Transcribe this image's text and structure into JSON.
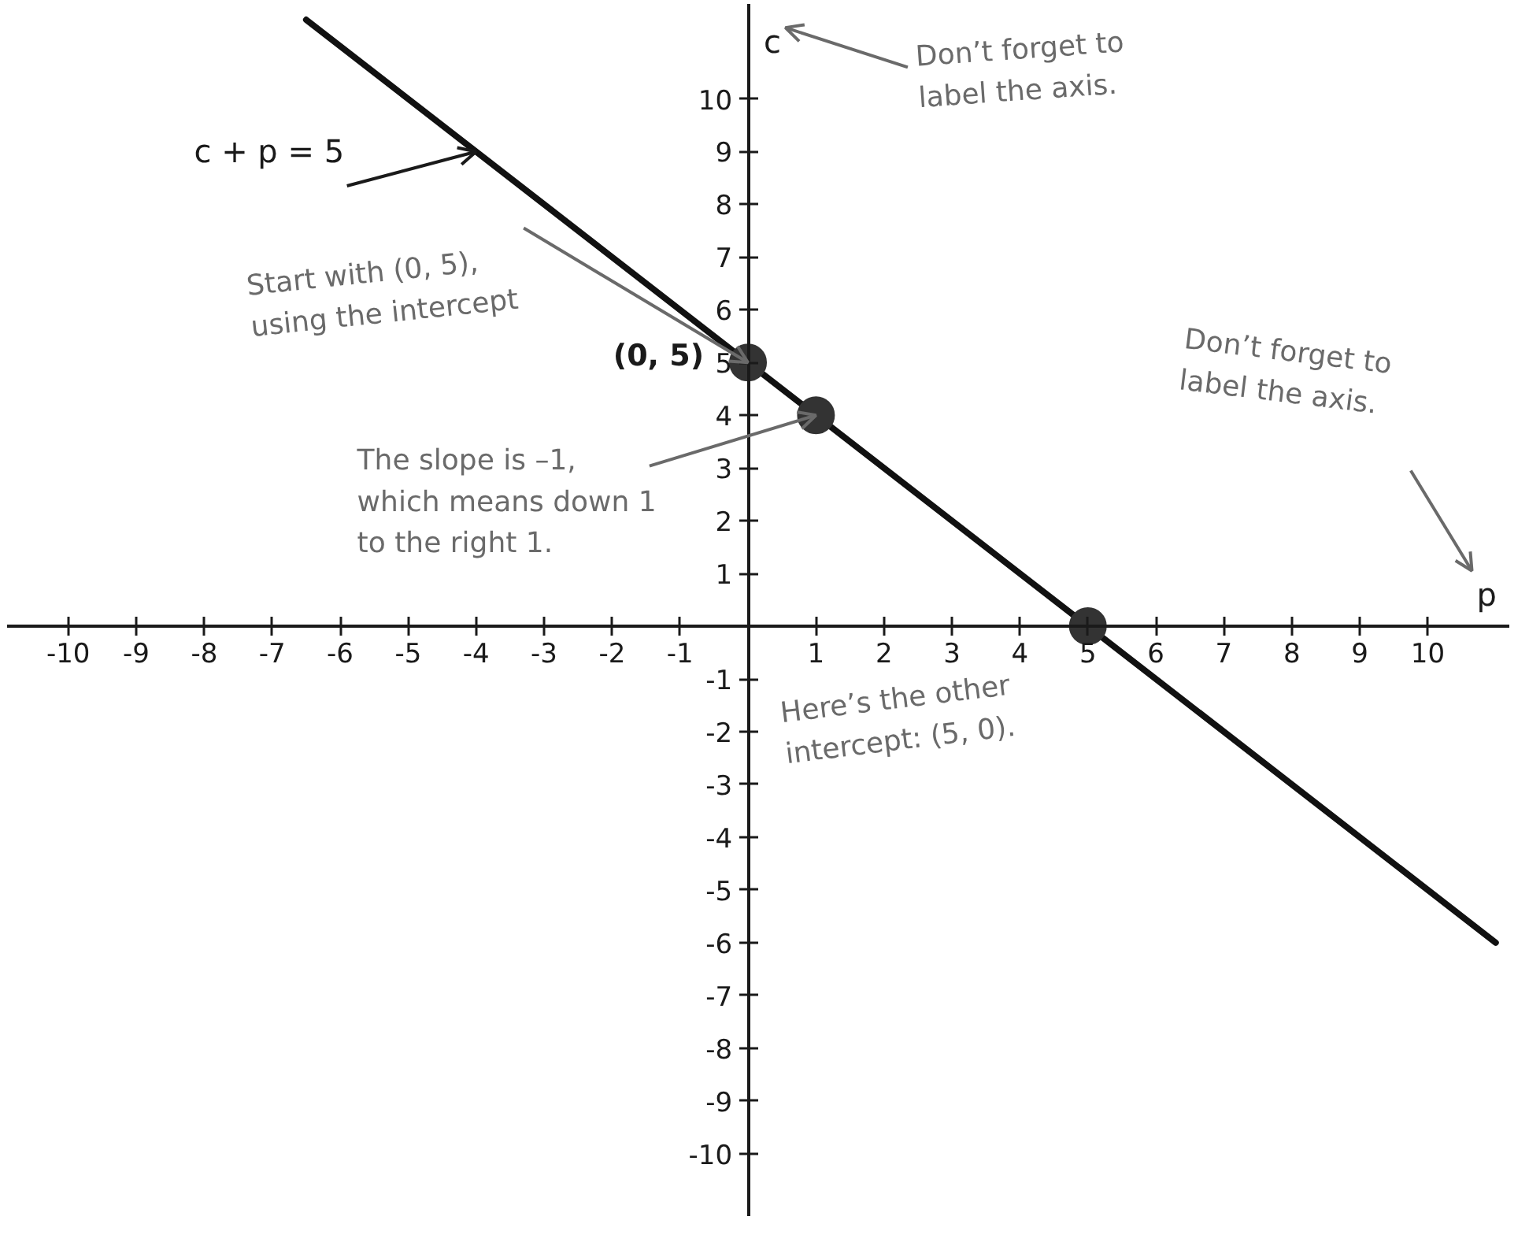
{
  "chart_data": {
    "type": "line",
    "xlabel": "p",
    "ylabel": "c",
    "xlim": [
      -10.9,
      11.2
    ],
    "ylim": [
      -11.2,
      11.8
    ],
    "xticks": [
      -10,
      -9,
      -8,
      -7,
      -6,
      -5,
      -4,
      -3,
      -2,
      -1,
      1,
      2,
      3,
      4,
      5,
      6,
      7,
      8,
      9,
      10
    ],
    "yticks": [
      -10,
      -9,
      -8,
      -7,
      -6,
      -5,
      -4,
      -3,
      -2,
      -1,
      1,
      2,
      3,
      4,
      5,
      6,
      7,
      8,
      9,
      10
    ],
    "grid": false,
    "series": [
      {
        "x": [
          -6.5,
          11
        ],
        "values": [
          11.5,
          -6
        ],
        "color": "#111111"
      },
      {
        "type": "scatter",
        "x": [
          0,
          1,
          5
        ],
        "values": [
          5,
          4,
          0
        ],
        "color": "#333333",
        "marker": "circle",
        "value_labels": [
          "(0, 5)",
          null,
          null
        ]
      }
    ],
    "annotations": [
      {
        "text": "c + p = 5",
        "x": -4,
        "y": 9
      },
      "Don’t forget to\nlabel the axis.",
      {
        "text": "Start with (0, 5),\nusing the intercept",
        "x": 0,
        "y": 5
      },
      {
        "text": "The slope is –1,\nwhich means down 1\nto the right 1.",
        "x": 1,
        "y": 4
      },
      "Don’t forget to\nlabel the axis.",
      "Here’s the other\nintercept: (5, 0)."
    ]
  }
}
